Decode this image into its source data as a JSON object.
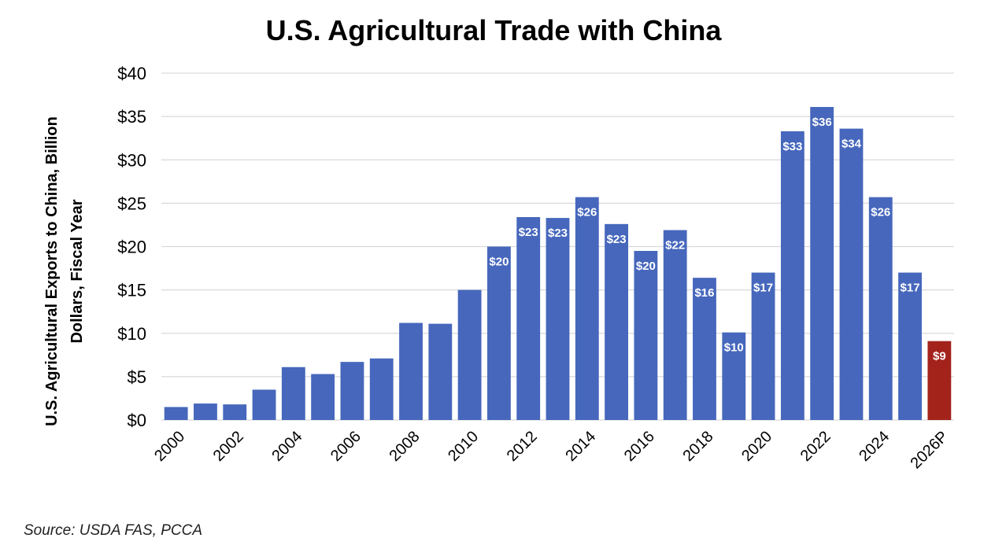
{
  "chart_data": {
    "type": "bar",
    "title": "U.S. Agricultural Trade with China",
    "ylabel": [
      "U.S. Agricultural Exports to China, Billion",
      "Dollars, Fiscal Year"
    ],
    "ylim": [
      0,
      40
    ],
    "yticks": [
      "$0",
      "$5",
      "$10",
      "$15",
      "$20",
      "$25",
      "$30",
      "$35",
      "$40"
    ],
    "ytick_values": [
      0,
      5,
      10,
      15,
      20,
      25,
      30,
      35,
      40
    ],
    "grid": true,
    "categories": [
      "2000",
      "2001",
      "2002",
      "2003",
      "2004",
      "2005",
      "2006",
      "2007",
      "2008",
      "2009",
      "2010",
      "2011",
      "2012",
      "2013",
      "2014",
      "2015",
      "2016",
      "2017",
      "2018",
      "2019",
      "2020",
      "2021",
      "2022",
      "2023",
      "2024",
      "2025",
      "2026P"
    ],
    "xtick_labels": [
      "2000",
      "",
      "2002",
      "",
      "2004",
      "",
      "2006",
      "",
      "2008",
      "",
      "2010",
      "",
      "2012",
      "",
      "2014",
      "",
      "2016",
      "",
      "2018",
      "",
      "2020",
      "",
      "2022",
      "",
      "2024",
      "",
      "2026P"
    ],
    "values": [
      1.5,
      1.9,
      1.8,
      3.5,
      6.1,
      5.3,
      6.7,
      7.1,
      11.2,
      11.1,
      15.0,
      20.0,
      23.4,
      23.3,
      25.7,
      22.6,
      19.5,
      21.9,
      16.4,
      10.1,
      17.0,
      33.3,
      36.1,
      33.6,
      25.7,
      17.0,
      9.1
    ],
    "data_labels": [
      "",
      "",
      "",
      "",
      "",
      "",
      "",
      "",
      "",
      "",
      "",
      "$20",
      "$23",
      "$23",
      "$26",
      "$23",
      "$20",
      "$22",
      "$16",
      "$10",
      "$17",
      "$33",
      "$36",
      "$34",
      "$26",
      "$17",
      "$9"
    ],
    "bar_colors": [
      "#4667BC",
      "#4667BC",
      "#4667BC",
      "#4667BC",
      "#4667BC",
      "#4667BC",
      "#4667BC",
      "#4667BC",
      "#4667BC",
      "#4667BC",
      "#4667BC",
      "#4667BC",
      "#4667BC",
      "#4667BC",
      "#4667BC",
      "#4667BC",
      "#4667BC",
      "#4667BC",
      "#4667BC",
      "#4667BC",
      "#4667BC",
      "#4667BC",
      "#4667BC",
      "#4667BC",
      "#4667BC",
      "#4667BC",
      "#A3231B"
    ],
    "gridline_color": "#d9d9d9"
  },
  "source": "Source: USDA FAS, PCCA"
}
